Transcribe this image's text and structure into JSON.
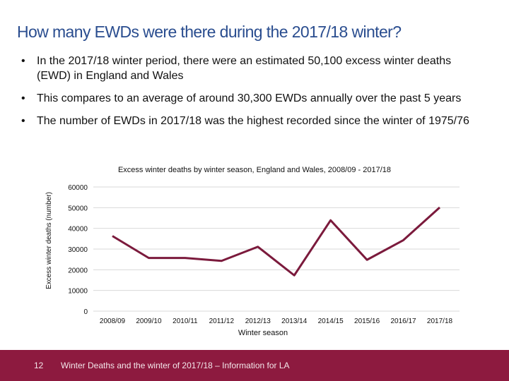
{
  "slide": {
    "title": "How many EWDs were there during the 2017/18 winter?",
    "bullets": [
      "In the 2017/18 winter period, there were an estimated 50,100 excess winter deaths (EWD) in England and Wales",
      "This compares to an average of around 30,300 EWDs annually over the past 5 years",
      "The number of EWDs in 2017/18 was the highest recorded since the winter of 1975/76"
    ]
  },
  "footer": {
    "page_number": "12",
    "text": "Winter Deaths and the winter of 2017/18 – Information for LA"
  },
  "chart_data": {
    "type": "line",
    "title": "Excess winter deaths by winter season, England and Wales, 2008/09 - 2017/18",
    "xlabel": "Winter season",
    "ylabel": "Excess winter deaths (number)",
    "categories": [
      "2008/09",
      "2009/10",
      "2010/11",
      "2011/12",
      "2012/13",
      "2013/14",
      "2014/15",
      "2015/16",
      "2016/17",
      "2017/18"
    ],
    "series": [
      {
        "values": [
          36300,
          25700,
          25700,
          24300,
          31100,
          17300,
          43900,
          24800,
          34300,
          50100
        ],
        "color": "#7b1a3c"
      }
    ],
    "ylim": [
      0,
      60000
    ],
    "yticks": [
      0,
      10000,
      20000,
      30000,
      40000,
      50000,
      60000
    ],
    "grid": true,
    "legend": "none"
  }
}
